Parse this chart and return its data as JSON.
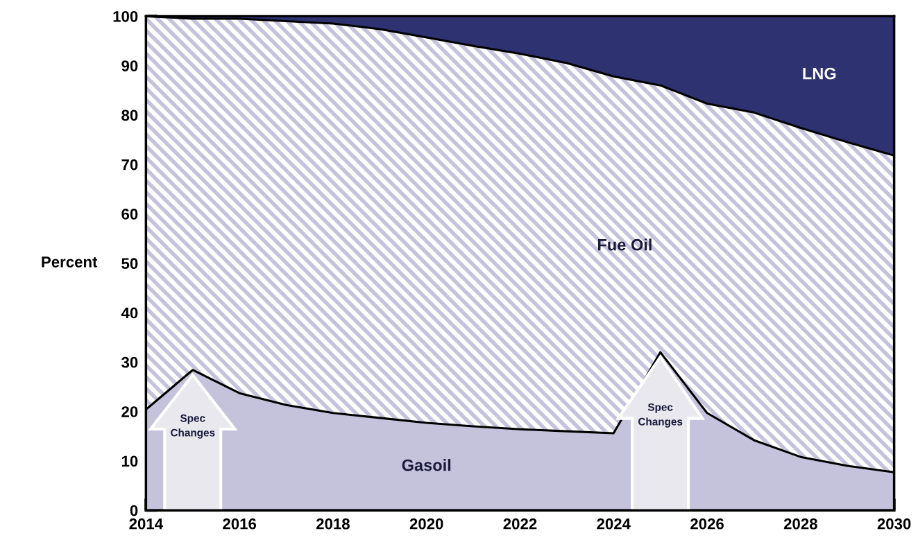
{
  "chart_data": {
    "type": "area",
    "stacked": true,
    "ylabel": "Percent",
    "x": [
      2014,
      2015,
      2016,
      2017,
      2018,
      2019,
      2020,
      2021,
      2022,
      2023,
      2024,
      2025,
      2026,
      2027,
      2028,
      2029,
      2030
    ],
    "series": [
      {
        "name": "Gasoil",
        "color": "#c5c3dc",
        "values": [
          20.4,
          28.4,
          23.7,
          21.3,
          19.7,
          18.7,
          17.7,
          17.0,
          16.4,
          16.0,
          15.6,
          32.0,
          19.7,
          14.2,
          10.8,
          9.0,
          7.7
        ]
      },
      {
        "name": "Fue Oil",
        "color": "#ffffff",
        "values": [
          79.6,
          71.1,
          75.8,
          77.7,
          78.8,
          78.7,
          78.0,
          77.0,
          76.0,
          74.5,
          72.2,
          54.0,
          62.6,
          66.3,
          66.6,
          65.5,
          64.1
        ]
      },
      {
        "name": "LNG",
        "color": "#2e3270",
        "values": [
          0.0,
          0.5,
          0.5,
          1.0,
          1.5,
          2.6,
          4.3,
          6.0,
          7.6,
          9.5,
          12.2,
          14.0,
          17.7,
          19.5,
          22.6,
          25.5,
          28.2
        ]
      }
    ],
    "xlim": [
      2014,
      2030
    ],
    "xticks": [
      2014,
      2016,
      2018,
      2020,
      2022,
      2024,
      2026,
      2028,
      2030
    ],
    "ylim": [
      0,
      100
    ],
    "yticks": [
      0,
      10,
      20,
      30,
      40,
      50,
      60,
      70,
      80,
      90,
      100
    ],
    "annotations": [
      "Spec Changes",
      "Spec Changes"
    ]
  }
}
